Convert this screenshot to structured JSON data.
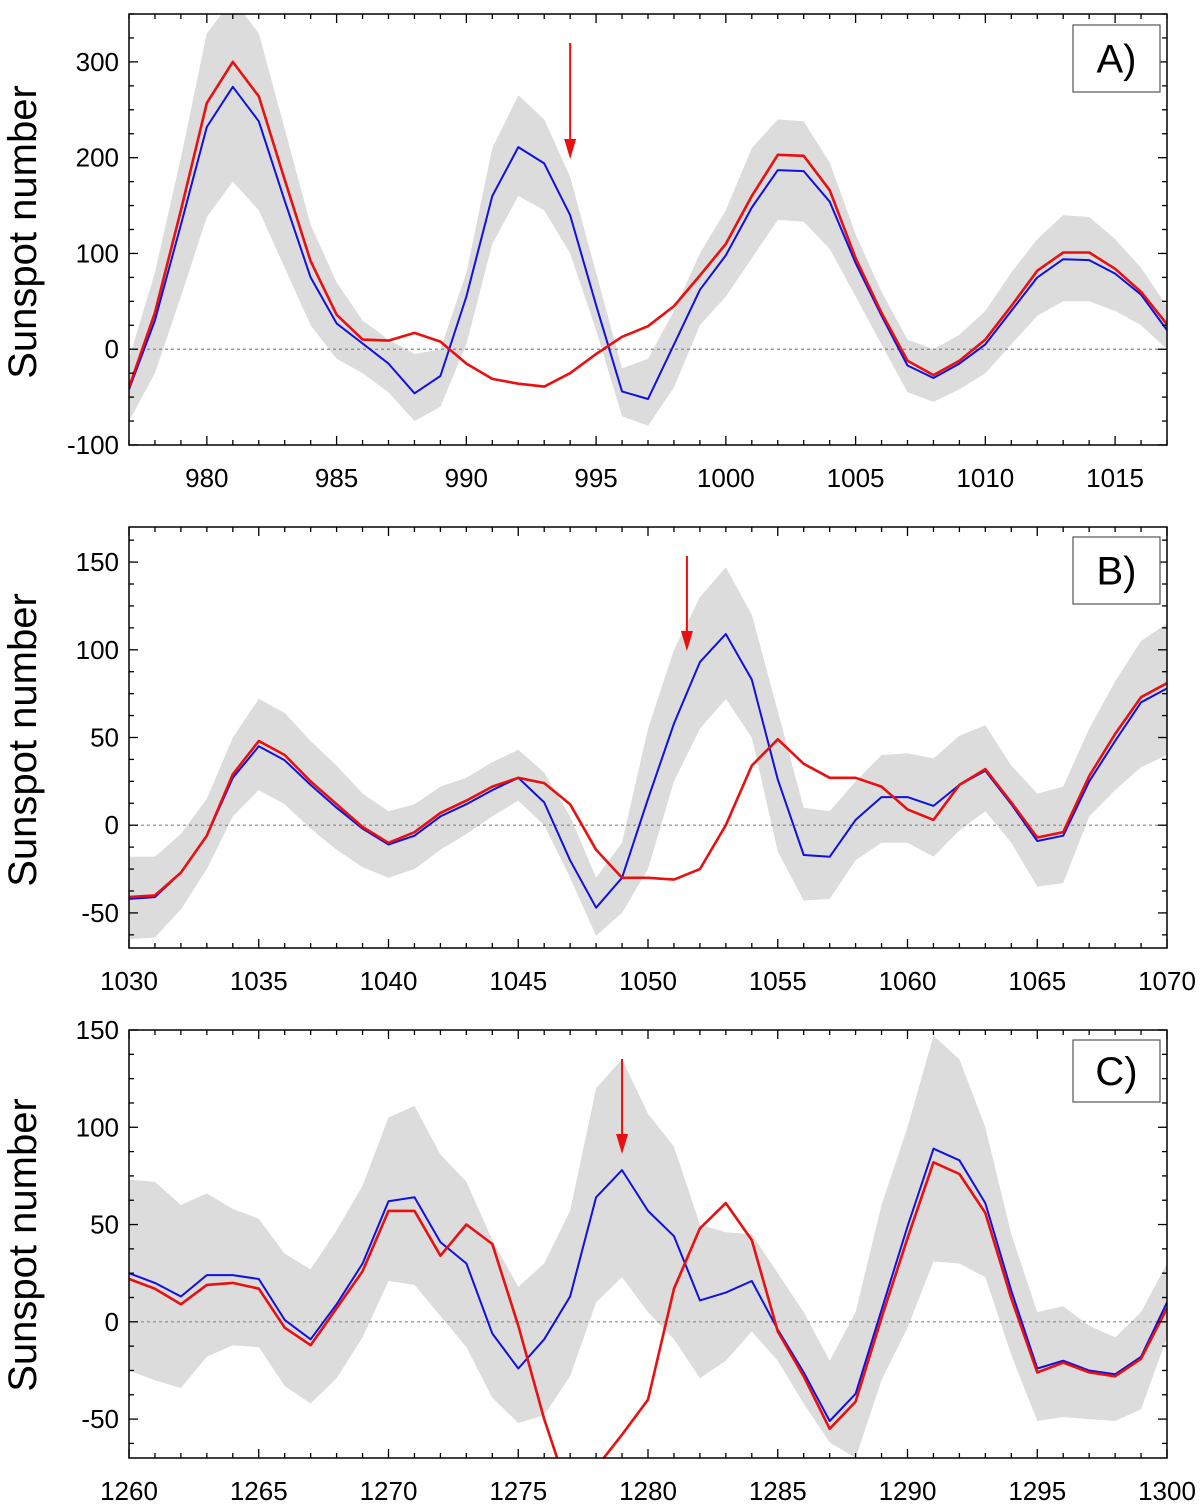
{
  "figure": {
    "colors": {
      "band": "#dcdcdc",
      "blue": "#1010e0",
      "red": "#e81010",
      "zero_line": "#888888",
      "axis": "#000000"
    }
  },
  "chart_data": [
    {
      "type": "line",
      "panel_label": "A)",
      "ylabel": "Sunspot number",
      "xlim": [
        977,
        1017
      ],
      "ylim": [
        -100,
        350
      ],
      "xticks": [
        980,
        985,
        990,
        995,
        1000,
        1005,
        1010,
        1015
      ],
      "yticks": [
        -100,
        0,
        100,
        200,
        300
      ],
      "zero_line": true,
      "arrow_x": 994,
      "band": {
        "x": [
          977,
          978,
          979,
          980,
          981,
          982,
          983,
          984,
          985,
          986,
          987,
          988,
          989,
          990,
          991,
          992,
          993,
          994,
          995,
          996,
          997,
          998,
          999,
          1000,
          1001,
          1002,
          1003,
          1004,
          1005,
          1006,
          1007,
          1008,
          1009,
          1010,
          1011,
          1012,
          1013,
          1014,
          1015,
          1016,
          1017
        ],
        "upper": [
          -10,
          80,
          200,
          330,
          365,
          330,
          230,
          130,
          70,
          30,
          10,
          -5,
          0,
          80,
          210,
          265,
          240,
          180,
          80,
          -20,
          -10,
          40,
          100,
          145,
          210,
          240,
          238,
          195,
          120,
          60,
          10,
          0,
          15,
          40,
          80,
          115,
          140,
          138,
          115,
          85,
          45
        ],
        "lower": [
          -75,
          -25,
          55,
          138,
          175,
          145,
          85,
          25,
          -10,
          -25,
          -45,
          -75,
          -60,
          5,
          110,
          160,
          145,
          100,
          20,
          -70,
          -80,
          -40,
          25,
          55,
          95,
          135,
          133,
          105,
          55,
          5,
          -45,
          -55,
          -42,
          -25,
          5,
          35,
          50,
          50,
          40,
          25,
          0
        ]
      },
      "series": [
        {
          "color": "blue",
          "x": [
            977,
            978,
            979,
            980,
            981,
            982,
            983,
            984,
            985,
            986,
            987,
            988,
            989,
            990,
            991,
            992,
            993,
            994,
            995,
            996,
            997,
            998,
            999,
            1000,
            1001,
            1002,
            1003,
            1004,
            1005,
            1006,
            1007,
            1008,
            1009,
            1010,
            1011,
            1012,
            1013,
            1014,
            1015,
            1016,
            1017
          ],
          "y": [
            -42,
            30,
            130,
            232,
            274,
            238,
            155,
            75,
            27,
            6,
            -15,
            -46,
            -28,
            55,
            160,
            211,
            194,
            140,
            46,
            -44,
            -52,
            5,
            62,
            98,
            148,
            187,
            186,
            154,
            90,
            35,
            -17,
            -30,
            -15,
            5,
            40,
            75,
            94,
            93,
            79,
            57,
            20
          ]
        },
        {
          "color": "red",
          "x": [
            977,
            978,
            979,
            980,
            981,
            982,
            983,
            984,
            985,
            986,
            987,
            988,
            989,
            990,
            991,
            992,
            993,
            994,
            995,
            996,
            997,
            998,
            999,
            1000,
            1001,
            1002,
            1003,
            1004,
            1005,
            1006,
            1007,
            1008,
            1009,
            1010,
            1011,
            1012,
            1013,
            1014,
            1015,
            1016,
            1017
          ],
          "y": [
            -40,
            38,
            145,
            257,
            300,
            264,
            177,
            92,
            36,
            10,
            9,
            17,
            8,
            -15,
            -31,
            -36,
            -39,
            -25,
            -5,
            13,
            24,
            45,
            77,
            110,
            160,
            203,
            202,
            166,
            95,
            38,
            -12,
            -27,
            -12,
            10,
            45,
            82,
            101,
            101,
            84,
            60,
            26
          ]
        }
      ]
    },
    {
      "type": "line",
      "panel_label": "B)",
      "ylabel": "Sunspot number",
      "xlim": [
        1030,
        1070
      ],
      "ylim": [
        -70,
        170
      ],
      "xticks": [
        1030,
        1035,
        1040,
        1045,
        1050,
        1055,
        1060,
        1065,
        1070
      ],
      "yticks": [
        -50,
        0,
        50,
        100,
        150
      ],
      "zero_line": true,
      "arrow_x": 1051.5,
      "band": {
        "x": [
          1030,
          1031,
          1032,
          1033,
          1034,
          1035,
          1036,
          1037,
          1038,
          1039,
          1040,
          1041,
          1042,
          1043,
          1044,
          1045,
          1046,
          1047,
          1048,
          1049,
          1050,
          1051,
          1052,
          1053,
          1054,
          1055,
          1056,
          1057,
          1058,
          1059,
          1060,
          1061,
          1062,
          1063,
          1064,
          1065,
          1066,
          1067,
          1068,
          1069,
          1070
        ],
        "upper": [
          -18,
          -18,
          -5,
          15,
          50,
          72,
          64,
          48,
          34,
          18,
          8,
          12,
          22,
          27,
          36,
          43,
          30,
          5,
          -30,
          -10,
          55,
          100,
          130,
          147,
          120,
          65,
          10,
          8,
          25,
          40,
          41,
          38,
          51,
          57,
          34,
          18,
          22,
          55,
          82,
          105,
          115
        ],
        "lower": [
          -65,
          -64,
          -48,
          -25,
          5,
          20,
          12,
          -2,
          -14,
          -24,
          -30,
          -25,
          -14,
          -5,
          5,
          14,
          0,
          -30,
          -63,
          -50,
          -25,
          25,
          55,
          72,
          50,
          -15,
          -43,
          -42,
          -20,
          -10,
          -10,
          -18,
          -3,
          8,
          -10,
          -35,
          -33,
          5,
          20,
          33,
          40
        ]
      },
      "series": [
        {
          "color": "blue",
          "x": [
            1030,
            1031,
            1032,
            1033,
            1034,
            1035,
            1036,
            1037,
            1038,
            1039,
            1040,
            1041,
            1042,
            1043,
            1044,
            1045,
            1046,
            1047,
            1048,
            1049,
            1050,
            1051,
            1052,
            1053,
            1054,
            1055,
            1056,
            1057,
            1058,
            1059,
            1060,
            1061,
            1062,
            1063,
            1064,
            1065,
            1066,
            1067,
            1068,
            1069,
            1070
          ],
          "y": [
            -42,
            -41,
            -27,
            -6,
            27,
            45,
            37,
            23,
            10,
            -2,
            -11,
            -6,
            5,
            12,
            20,
            27,
            13,
            -20,
            -47,
            -30,
            15,
            58,
            93,
            109,
            83,
            26,
            -17,
            -18,
            3,
            16,
            16,
            11,
            23,
            31,
            12,
            -9,
            -6,
            25,
            48,
            70,
            78
          ]
        },
        {
          "color": "red",
          "x": [
            1030,
            1031,
            1032,
            1033,
            1034,
            1035,
            1036,
            1037,
            1038,
            1039,
            1040,
            1041,
            1042,
            1043,
            1044,
            1045,
            1046,
            1047,
            1048,
            1049,
            1050,
            1051,
            1052,
            1053,
            1054,
            1055,
            1056,
            1057,
            1058,
            1059,
            1060,
            1061,
            1062,
            1063,
            1064,
            1065,
            1066,
            1067,
            1068,
            1069,
            1070
          ],
          "y": [
            -41,
            -40,
            -27,
            -6,
            29,
            48,
            40,
            25,
            12,
            -1,
            -10,
            -4,
            7,
            14,
            22,
            27,
            24,
            12,
            -14,
            -30,
            -30,
            -31,
            -25,
            0,
            34,
            49,
            35,
            27,
            27,
            22,
            9,
            3,
            23,
            32,
            13,
            -7,
            -4,
            28,
            52,
            73,
            81
          ]
        }
      ]
    },
    {
      "type": "line",
      "panel_label": "C)",
      "ylabel": "Sunspot number",
      "xlim": [
        1260,
        1300
      ],
      "ylim": [
        -70,
        150
      ],
      "xticks": [
        1260,
        1265,
        1270,
        1275,
        1280,
        1285,
        1290,
        1295,
        1300
      ],
      "yticks": [
        -50,
        0,
        50,
        100,
        150
      ],
      "zero_line": true,
      "arrow_x": 1279,
      "band": {
        "x": [
          1260,
          1261,
          1262,
          1263,
          1264,
          1265,
          1266,
          1267,
          1268,
          1269,
          1270,
          1271,
          1272,
          1273,
          1274,
          1275,
          1276,
          1277,
          1278,
          1279,
          1280,
          1281,
          1282,
          1283,
          1284,
          1285,
          1286,
          1287,
          1288,
          1289,
          1290,
          1291,
          1292,
          1293,
          1294,
          1295,
          1296,
          1297,
          1298,
          1299,
          1300
        ],
        "upper": [
          73,
          72,
          60,
          66,
          58,
          53,
          35,
          27,
          47,
          70,
          105,
          111,
          86,
          72,
          42,
          18,
          30,
          57,
          120,
          135,
          107,
          90,
          50,
          46,
          45,
          25,
          5,
          -20,
          5,
          60,
          100,
          147,
          135,
          100,
          45,
          5,
          8,
          -2,
          -8,
          5,
          30
        ],
        "lower": [
          -25,
          -30,
          -34,
          -18,
          -12,
          -13,
          -33,
          -42,
          -29,
          -8,
          21,
          19,
          3,
          -13,
          -39,
          -52,
          -48,
          -28,
          10,
          23,
          5,
          -9,
          -29,
          -20,
          -5,
          -20,
          -42,
          -62,
          -70,
          -30,
          -3,
          31,
          30,
          23,
          -17,
          -51,
          -49,
          -50,
          -51,
          -45,
          -8
        ]
      },
      "series": [
        {
          "color": "blue",
          "x": [
            1260,
            1261,
            1262,
            1263,
            1264,
            1265,
            1266,
            1267,
            1268,
            1269,
            1270,
            1271,
            1272,
            1273,
            1274,
            1275,
            1276,
            1277,
            1278,
            1279,
            1280,
            1281,
            1282,
            1283,
            1284,
            1285,
            1286,
            1287,
            1288,
            1289,
            1290,
            1291,
            1292,
            1293,
            1294,
            1295,
            1296,
            1297,
            1298,
            1299,
            1300
          ],
          "y": [
            25,
            20,
            13,
            24,
            24,
            22,
            1,
            -9,
            9,
            30,
            62,
            64,
            41,
            30,
            -6,
            -24,
            -9,
            13,
            64,
            78,
            57,
            44,
            11,
            15,
            21,
            -4,
            -26,
            -51,
            -37,
            6,
            49,
            89,
            83,
            61,
            16,
            -24,
            -20,
            -25,
            -27,
            -18,
            10
          ]
        },
        {
          "color": "red",
          "x": [
            1260,
            1261,
            1262,
            1263,
            1264,
            1265,
            1266,
            1267,
            1268,
            1269,
            1270,
            1271,
            1272,
            1273,
            1274,
            1275,
            1276,
            1277,
            1278,
            1279,
            1280,
            1281,
            1282,
            1283,
            1284,
            1285,
            1286,
            1287,
            1288,
            1289,
            1290,
            1291,
            1292,
            1293,
            1294,
            1295,
            1296,
            1297,
            1298,
            1299,
            1300
          ],
          "y": [
            22,
            17,
            9,
            19,
            20,
            17,
            -3,
            -12,
            7,
            26,
            57,
            57,
            34,
            50,
            40,
            -2,
            -50,
            -90,
            -75,
            -58,
            -40,
            17,
            48,
            61,
            42,
            -5,
            -28,
            -55,
            -41,
            2,
            43,
            82,
            76,
            56,
            12,
            -26,
            -21,
            -26,
            -28,
            -19,
            7
          ]
        }
      ]
    }
  ]
}
